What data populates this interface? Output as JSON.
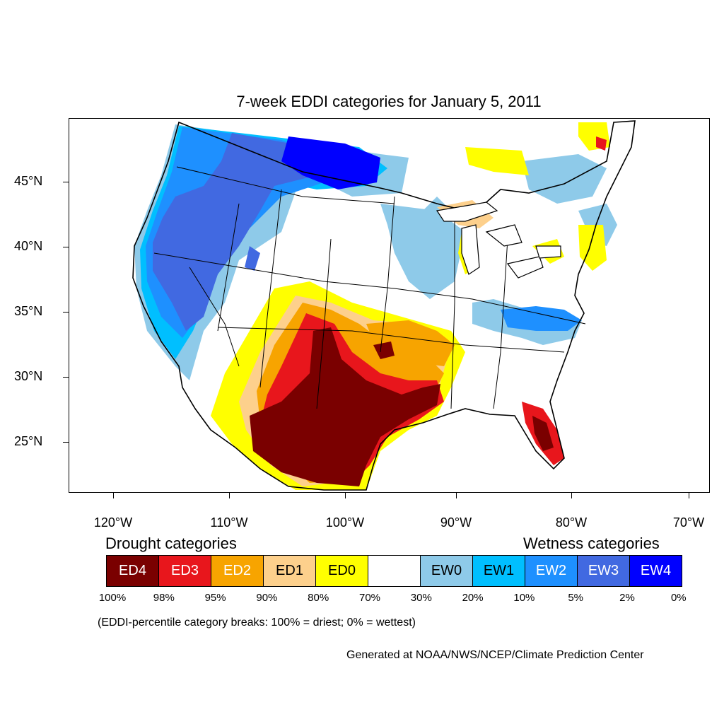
{
  "title": "7-week EDDI categories for January 5, 2011",
  "map": {
    "region": "Contiguous United States",
    "y_axis": [
      "45°N",
      "40°N",
      "35°N",
      "30°N",
      "25°N"
    ],
    "x_axis": [
      "120°W",
      "110°W",
      "100°W",
      "90°W",
      "80°W",
      "70°W"
    ],
    "palette": {
      "ED4": "#7a0000",
      "ED3": "#e8161c",
      "ED2": "#f7a400",
      "ED1": "#fdd08c",
      "ED0": "#ffff00",
      "neutral": "#ffffff",
      "EW0": "#8ecae9",
      "EW1": "#00bfff",
      "EW2": "#1e90ff",
      "EW3": "#4169e1",
      "EW4": "#0000ff"
    }
  },
  "legend": {
    "drought_heading": "Drought categories",
    "wetness_heading": "Wetness categories",
    "categories": [
      {
        "label": "ED4",
        "color": "#7a0000",
        "text_color": "#ffffff"
      },
      {
        "label": "ED3",
        "color": "#e8161c",
        "text_color": "#ffffff"
      },
      {
        "label": "ED2",
        "color": "#f7a400",
        "text_color": "#ffffff"
      },
      {
        "label": "ED1",
        "color": "#fdd08c",
        "text_color": "#000000"
      },
      {
        "label": "ED0",
        "color": "#ffff00",
        "text_color": "#000000"
      },
      {
        "label": "",
        "color": "#ffffff",
        "text_color": "#000000"
      },
      {
        "label": "EW0",
        "color": "#8ecae9",
        "text_color": "#000000"
      },
      {
        "label": "EW1",
        "color": "#00bfff",
        "text_color": "#000000"
      },
      {
        "label": "EW2",
        "color": "#1e90ff",
        "text_color": "#ffffff"
      },
      {
        "label": "EW3",
        "color": "#4169e1",
        "text_color": "#ffffff"
      },
      {
        "label": "EW4",
        "color": "#0000ff",
        "text_color": "#ffffff"
      }
    ],
    "percentiles": [
      "100%",
      "98%",
      "95%",
      "90%",
      "80%",
      "70%",
      "30%",
      "20%",
      "10%",
      "5%",
      "2%",
      "0%"
    ]
  },
  "breaks_note": "(EDDI-percentile category breaks: 100% = driest; 0% = wettest)",
  "credit": "Generated at NOAA/NWS/NCEP/Climate Prediction Center"
}
